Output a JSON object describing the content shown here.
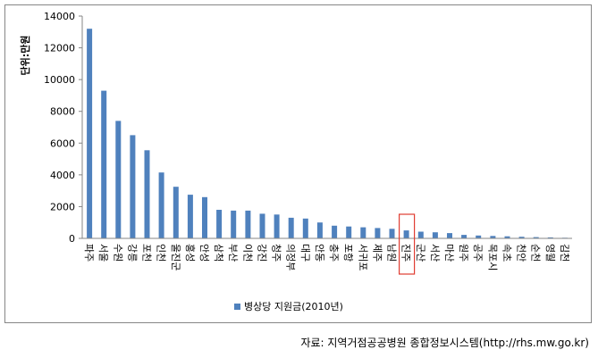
{
  "chart_data": {
    "type": "bar",
    "ylabel": "단위:만원",
    "ylim": [
      0,
      14000
    ],
    "yticks": [
      0,
      2000,
      4000,
      6000,
      8000,
      10000,
      12000,
      14000
    ],
    "categories": [
      "파주",
      "서울",
      "수원",
      "강릉",
      "포천",
      "인천",
      "울진군",
      "홍성",
      "안성",
      "삼척",
      "부산",
      "이천",
      "강진",
      "청주",
      "의정부",
      "대구",
      "안동",
      "충주",
      "포항",
      "서귀포",
      "제주",
      "남원",
      "진주",
      "군산",
      "서산",
      "마산",
      "원주",
      "공주",
      "목포시",
      "속초",
      "천안",
      "순천",
      "영월",
      "김천"
    ],
    "series": [
      {
        "name": "병상당 지원금(2010년)",
        "color": "#4F81BD",
        "values": [
          13200,
          9300,
          7400,
          6500,
          5550,
          4150,
          3250,
          2750,
          2600,
          1800,
          1750,
          1750,
          1550,
          1500,
          1300,
          1250,
          1000,
          800,
          750,
          700,
          650,
          600,
          500,
          420,
          380,
          330,
          220,
          180,
          150,
          130,
          100,
          80,
          60,
          40
        ]
      }
    ],
    "highlight": {
      "category": "진주",
      "color": "#E03C31"
    },
    "legend": "bottom-center",
    "grid": false
  },
  "source": "자료: 지역거점공공병원 종합정보시스템(http://rhs.mw.go.kr)"
}
